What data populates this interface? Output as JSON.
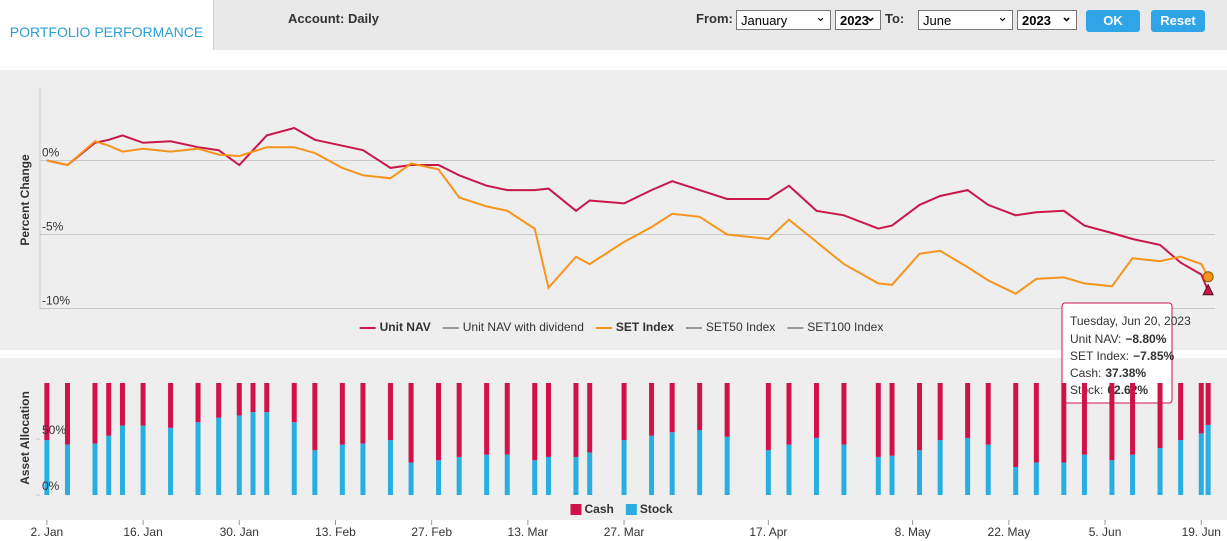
{
  "header": {
    "tab": "PORTFOLIO PERFORMANCE",
    "account": "Account: Daily",
    "from_label": "From:",
    "from_month": "January",
    "from_year": "2023",
    "to_label": "To:",
    "to_month": "June",
    "to_year": "2023",
    "ok": "OK",
    "reset": "Reset"
  },
  "chart_data": [
    {
      "type": "line",
      "y_axis_title": "Percent Change",
      "x": [
        "2023-01-02",
        "2023-01-05",
        "2023-01-09",
        "2023-01-11",
        "2023-01-13",
        "2023-01-16",
        "2023-01-20",
        "2023-01-24",
        "2023-01-27",
        "2023-01-30",
        "2023-02-01",
        "2023-02-03",
        "2023-02-07",
        "2023-02-10",
        "2023-02-14",
        "2023-02-17",
        "2023-02-21",
        "2023-02-24",
        "2023-02-28",
        "2023-03-03",
        "2023-03-07",
        "2023-03-10",
        "2023-03-14",
        "2023-03-16",
        "2023-03-20",
        "2023-03-22",
        "2023-03-27",
        "2023-03-31",
        "2023-04-03",
        "2023-04-07",
        "2023-04-11",
        "2023-04-17",
        "2023-04-20",
        "2023-04-24",
        "2023-04-28",
        "2023-05-03",
        "2023-05-05",
        "2023-05-09",
        "2023-05-12",
        "2023-05-16",
        "2023-05-19",
        "2023-05-23",
        "2023-05-26",
        "2023-05-30",
        "2023-06-02",
        "2023-06-06",
        "2023-06-09",
        "2023-06-13",
        "2023-06-16",
        "2023-06-19",
        "2023-06-20"
      ],
      "xlim": [
        "2023-01-01",
        "2023-06-21"
      ],
      "ylim": [
        -10.1,
        4.9
      ],
      "yticks": [
        {
          "value": 0,
          "label": "0%"
        },
        {
          "value": -5,
          "label": "-5%"
        },
        {
          "value": -10,
          "label": "-10%"
        }
      ],
      "grid": true,
      "series": [
        {
          "name": "Unit NAV",
          "color": "#c8174a",
          "marker": "triangle",
          "values": [
            0,
            -0.3,
            1.2,
            1.4,
            1.7,
            1.2,
            1.3,
            0.9,
            0.7,
            -0.3,
            0.7,
            1.7,
            2.2,
            1.4,
            1.0,
            0.7,
            -0.5,
            -0.3,
            -0.3,
            -1.0,
            -1.7,
            -2.0,
            -2.0,
            -1.9,
            -3.4,
            -2.7,
            -2.9,
            -2.0,
            -1.4,
            -2.0,
            -2.6,
            -2.6,
            -1.7,
            -3.4,
            -3.7,
            -4.6,
            -4.4,
            -3.0,
            -2.4,
            -2.0,
            -3.0,
            -3.7,
            -3.5,
            -3.4,
            -4.4,
            -4.9,
            -5.3,
            -5.7,
            -6.9,
            -7.7,
            -8.8
          ]
        },
        {
          "name": "Unit NAV with dividend",
          "color": "#999999",
          "visible": false
        },
        {
          "name": "SET Index",
          "color": "#f7941d",
          "marker": "circle",
          "values": [
            0,
            -0.3,
            1.3,
            1.0,
            0.6,
            0.8,
            0.6,
            0.8,
            0.4,
            0.3,
            0.6,
            0.9,
            0.9,
            0.5,
            -0.5,
            -1.0,
            -1.2,
            -0.2,
            -0.6,
            -2.5,
            -3.1,
            -3.4,
            -4.6,
            -8.6,
            -6.5,
            -7.0,
            -5.5,
            -4.5,
            -3.6,
            -3.8,
            -5.0,
            -5.3,
            -4.0,
            -5.5,
            -7.0,
            -8.3,
            -8.4,
            -6.3,
            -6.1,
            -7.2,
            -8.1,
            -9.0,
            -8.0,
            -7.9,
            -8.3,
            -8.5,
            -6.6,
            -6.8,
            -6.5,
            -7.0,
            -7.85
          ]
        },
        {
          "name": "SET50 Index",
          "color": "#999999",
          "visible": false
        },
        {
          "name": "SET100 Index",
          "color": "#999999",
          "visible": false
        }
      ],
      "tooltip": {
        "title": "Tuesday, Jun 20, 2023",
        "items": [
          {
            "label": "Unit NAV:",
            "value": "−8.80%",
            "color": "#c8174a"
          },
          {
            "label": "SET Index:",
            "value": "−7.85%",
            "color": "#f7941d"
          },
          {
            "label": "Cash:",
            "value": "37.38%",
            "color": "#d0114a"
          },
          {
            "label": "Stock:",
            "value": "62.62%",
            "color": "#29aee1"
          }
        ]
      }
    },
    {
      "type": "stacked_bar",
      "y_axis_title": "Asset Allocation",
      "x": [
        "2023-01-02",
        "2023-01-05",
        "2023-01-09",
        "2023-01-11",
        "2023-01-13",
        "2023-01-16",
        "2023-01-20",
        "2023-01-24",
        "2023-01-27",
        "2023-01-30",
        "2023-02-01",
        "2023-02-03",
        "2023-02-07",
        "2023-02-10",
        "2023-02-14",
        "2023-02-17",
        "2023-02-21",
        "2023-02-24",
        "2023-02-28",
        "2023-03-03",
        "2023-03-07",
        "2023-03-10",
        "2023-03-14",
        "2023-03-16",
        "2023-03-20",
        "2023-03-22",
        "2023-03-27",
        "2023-03-31",
        "2023-04-03",
        "2023-04-07",
        "2023-04-11",
        "2023-04-17",
        "2023-04-20",
        "2023-04-24",
        "2023-04-28",
        "2023-05-03",
        "2023-05-05",
        "2023-05-09",
        "2023-05-12",
        "2023-05-16",
        "2023-05-19",
        "2023-05-23",
        "2023-05-26",
        "2023-05-30",
        "2023-06-02",
        "2023-06-06",
        "2023-06-09",
        "2023-06-13",
        "2023-06-16",
        "2023-06-19",
        "2023-06-20"
      ],
      "xlim": [
        "2023-01-01",
        "2023-06-21"
      ],
      "xticks": [
        {
          "value": "2023-01-02",
          "label": "2. Jan"
        },
        {
          "value": "2023-01-16",
          "label": "16. Jan"
        },
        {
          "value": "2023-01-30",
          "label": "30. Jan"
        },
        {
          "value": "2023-02-13",
          "label": "13. Feb"
        },
        {
          "value": "2023-02-27",
          "label": "27. Feb"
        },
        {
          "value": "2023-03-13",
          "label": "13. Mar"
        },
        {
          "value": "2023-03-27",
          "label": "27. Mar"
        },
        {
          "value": "2023-04-17",
          "label": "17. Apr"
        },
        {
          "value": "2023-05-08",
          "label": "8. May"
        },
        {
          "value": "2023-05-22",
          "label": "22. May"
        },
        {
          "value": "2023-06-05",
          "label": "5. Jun"
        },
        {
          "value": "2023-06-19",
          "label": "19. Jun"
        }
      ],
      "ylim": [
        0,
        100
      ],
      "yticks": [
        {
          "value": 0,
          "label": "0%"
        },
        {
          "value": 50,
          "label": "50%"
        }
      ],
      "series": [
        {
          "name": "Cash",
          "color": "#d0114a",
          "values": [
            51,
            55,
            54,
            47,
            38,
            38,
            40,
            35,
            31,
            29,
            26,
            26,
            35,
            60,
            55,
            54,
            51,
            71,
            69,
            66,
            64,
            64,
            69,
            66,
            66,
            62,
            51,
            47,
            44,
            42,
            48,
            60,
            55,
            49,
            55,
            66,
            65,
            60,
            51,
            49,
            55,
            75,
            71,
            71,
            64,
            69,
            64,
            58,
            51,
            45,
            37.38
          ]
        },
        {
          "name": "Stock",
          "color": "#29aee1",
          "values": [
            49,
            45,
            46,
            53,
            62,
            62,
            60,
            65,
            69,
            71,
            74,
            74,
            65,
            40,
            45,
            46,
            49,
            29,
            31,
            34,
            36,
            36,
            31,
            34,
            34,
            38,
            49,
            53,
            56,
            58,
            52,
            40,
            45,
            51,
            45,
            34,
            35,
            40,
            49,
            51,
            45,
            25,
            29,
            29,
            36,
            31,
            36,
            42,
            49,
            55,
            62.62
          ]
        }
      ]
    }
  ]
}
